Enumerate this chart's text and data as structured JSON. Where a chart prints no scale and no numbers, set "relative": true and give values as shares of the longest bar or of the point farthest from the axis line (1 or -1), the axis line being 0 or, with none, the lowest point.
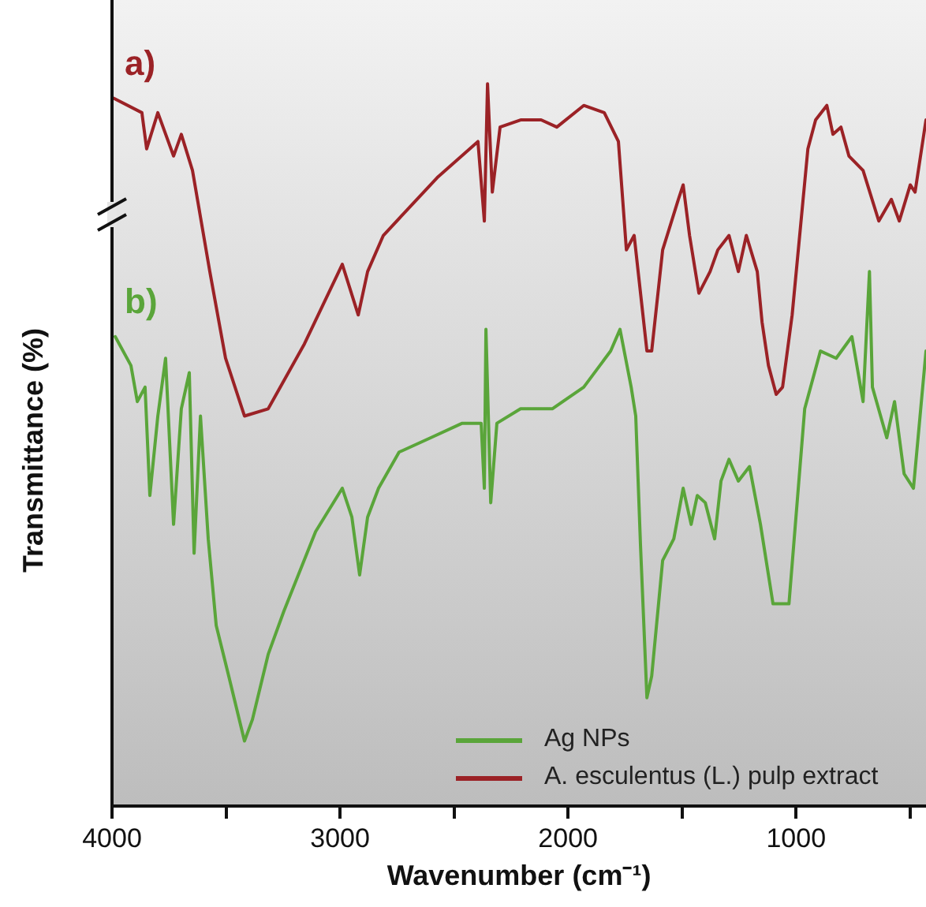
{
  "chart_data": {
    "type": "line",
    "xlabel": "Wavenumber (cm⁻¹)",
    "ylabel": "Transmittance (%)",
    "relative": true,
    "legend": "bottom right",
    "grid": false,
    "xlim": [
      4000,
      430
    ],
    "xticks": [
      4000,
      {
        "value": 3500,
        "label": null
      },
      3000,
      {
        "value": 2500,
        "label": null
      },
      2000,
      {
        "value": 1500,
        "label": null
      },
      1000,
      {
        "value": 500,
        "label": null
      }
    ],
    "annotations": [
      "a)",
      "b)"
    ],
    "series": [
      {
        "name": "A. esculentus (L.) pulp extract",
        "color": "#9b2226",
        "x": [
          3993,
          3869,
          3848,
          3799,
          3730,
          3696,
          3647,
          3571,
          3502,
          3419,
          3315,
          3156,
          2990,
          2920,
          2879,
          2810,
          2692,
          2574,
          2395,
          2367,
          2353,
          2332,
          2298,
          2208,
          2118,
          2049,
          1931,
          1841,
          1779,
          1744,
          1710,
          1654,
          1633,
          1585,
          1516,
          1495,
          1467,
          1426,
          1377,
          1343,
          1294,
          1253,
          1218,
          1170,
          1149,
          1121,
          1087,
          1059,
          1017,
          948,
          914,
          865,
          838,
          803,
          768,
          706,
          637,
          582,
          547,
          499,
          478,
          430
        ],
        "values": [
          0.98,
          0.96,
          0.91,
          0.96,
          0.9,
          0.93,
          0.88,
          0.74,
          0.62,
          0.54,
          0.55,
          0.64,
          0.75,
          0.68,
          0.74,
          0.79,
          0.83,
          0.87,
          0.92,
          0.81,
          1.0,
          0.85,
          0.94,
          0.95,
          0.95,
          0.94,
          0.97,
          0.96,
          0.92,
          0.77,
          0.79,
          0.63,
          0.63,
          0.77,
          0.84,
          0.86,
          0.79,
          0.71,
          0.74,
          0.77,
          0.79,
          0.74,
          0.79,
          0.74,
          0.67,
          0.61,
          0.57,
          0.58,
          0.68,
          0.91,
          0.95,
          0.97,
          0.93,
          0.94,
          0.9,
          0.88,
          0.81,
          0.84,
          0.81,
          0.86,
          0.85,
          0.95
        ]
      },
      {
        "name": "Ag NPs",
        "color": "#5aa53a",
        "x": [
          3986,
          3917,
          3889,
          3855,
          3834,
          3799,
          3765,
          3730,
          3696,
          3661,
          3640,
          3612,
          3578,
          3543,
          3488,
          3419,
          3384,
          3315,
          3246,
          3107,
          2990,
          2948,
          2914,
          2879,
          2831,
          2741,
          2602,
          2464,
          2381,
          2367,
          2360,
          2339,
          2312,
          2208,
          2069,
          1931,
          1813,
          1772,
          1723,
          1703,
          1682,
          1654,
          1633,
          1585,
          1536,
          1495,
          1460,
          1433,
          1398,
          1357,
          1329,
          1294,
          1253,
          1204,
          1156,
          1101,
          1031,
          962,
          893,
          824,
          755,
          706,
          678,
          665,
          602,
          568,
          526,
          485,
          430
        ],
        "values": [
          0.65,
          0.61,
          0.56,
          0.58,
          0.43,
          0.54,
          0.62,
          0.39,
          0.55,
          0.6,
          0.35,
          0.54,
          0.37,
          0.25,
          0.18,
          0.09,
          0.12,
          0.21,
          0.27,
          0.38,
          0.44,
          0.4,
          0.32,
          0.4,
          0.44,
          0.49,
          0.51,
          0.53,
          0.53,
          0.44,
          0.66,
          0.42,
          0.53,
          0.55,
          0.55,
          0.58,
          0.63,
          0.66,
          0.58,
          0.54,
          0.36,
          0.15,
          0.18,
          0.34,
          0.37,
          0.44,
          0.39,
          0.43,
          0.42,
          0.37,
          0.45,
          0.48,
          0.45,
          0.47,
          0.39,
          0.28,
          0.28,
          0.55,
          0.63,
          0.62,
          0.65,
          0.56,
          0.74,
          0.58,
          0.51,
          0.56,
          0.46,
          0.44,
          0.63
        ]
      }
    ]
  }
}
